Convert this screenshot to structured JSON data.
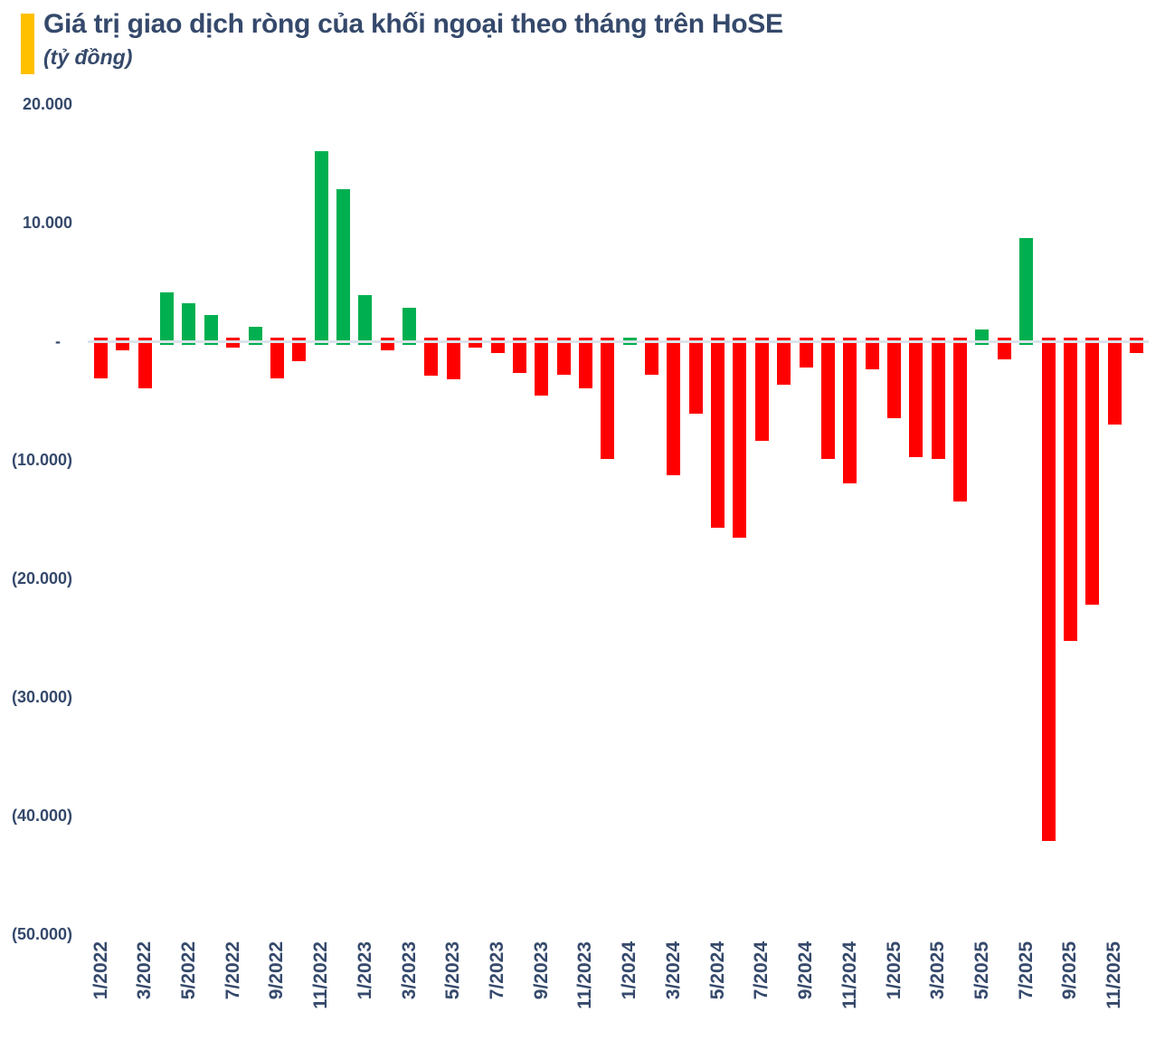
{
  "header": {
    "title": "Giá trị giao dịch ròng của khối ngoại theo tháng trên HoSE",
    "subtitle": "(tỷ đồng)"
  },
  "colors": {
    "accent": "#FFC000",
    "positive": "#00B050",
    "negative": "#FF0000",
    "text": "#35496B",
    "zero_line": "#DCE3EA"
  },
  "chart_data": {
    "type": "bar",
    "title": "Giá trị giao dịch ròng của khối ngoại theo tháng trên HoSE",
    "unit": "tỷ đồng",
    "x": [
      "1/2022",
      "2/2022",
      "3/2022",
      "4/2022",
      "5/2022",
      "6/2022",
      "7/2022",
      "8/2022",
      "9/2022",
      "10/2022",
      "11/2022",
      "12/2022",
      "1/2023",
      "2/2023",
      "3/2023",
      "4/2023",
      "5/2023",
      "6/2023",
      "7/2023",
      "8/2023",
      "9/2023",
      "10/2023",
      "11/2023",
      "12/2023",
      "1/2024",
      "2/2024",
      "3/2024",
      "4/2024",
      "5/2024",
      "6/2024",
      "7/2024",
      "8/2024",
      "9/2024",
      "10/2024",
      "11/2024",
      "12/2024",
      "1/2025",
      "2/2025",
      "3/2025",
      "4/2025",
      "5/2025",
      "6/2025",
      "7/2025",
      "8/2025",
      "9/2025",
      "10/2025",
      "11/2025",
      "12/2025"
    ],
    "values": [
      -3100,
      -800,
      -4000,
      4100,
      3200,
      2200,
      -500,
      1200,
      -3100,
      -1700,
      16000,
      12800,
      3900,
      -800,
      2800,
      -2900,
      -3200,
      -500,
      -1000,
      -2700,
      -4600,
      -2800,
      -4000,
      -9900,
      300,
      -2800,
      -11300,
      -6100,
      -15700,
      -16600,
      -8400,
      -3700,
      -2200,
      -9900,
      -12000,
      -2400,
      -6500,
      -9800,
      -9900,
      -13500,
      1000,
      -1500,
      8700,
      -42100,
      -25300,
      -22200,
      -7000,
      -1000
    ],
    "x_tick_every": 2,
    "x_tick_labels": [
      "1/2022",
      "3/2022",
      "5/2022",
      "7/2022",
      "9/2022",
      "11/2022",
      "1/2023",
      "3/2023",
      "5/2023",
      "7/2023",
      "9/2023",
      "11/2023",
      "1/2024",
      "3/2024",
      "5/2024",
      "7/2024",
      "9/2024",
      "11/2024",
      "1/2025",
      "3/2025",
      "5/2025",
      "7/2025",
      "9/2025",
      "11/2025"
    ],
    "y_ticks": [
      {
        "label": "20.000",
        "value": 20000
      },
      {
        "label": "10.000",
        "value": 10000
      },
      {
        "label": "-",
        "value": 0
      },
      {
        "label": "(10.000)",
        "value": -10000
      },
      {
        "label": "(20.000)",
        "value": -20000
      },
      {
        "label": "(30.000)",
        "value": -30000
      },
      {
        "label": "(40.000)",
        "value": -40000
      },
      {
        "label": "(50.000)",
        "value": -50000
      }
    ],
    "ylim": [
      -50000,
      20000
    ],
    "grid": false,
    "legend_position": "none"
  }
}
